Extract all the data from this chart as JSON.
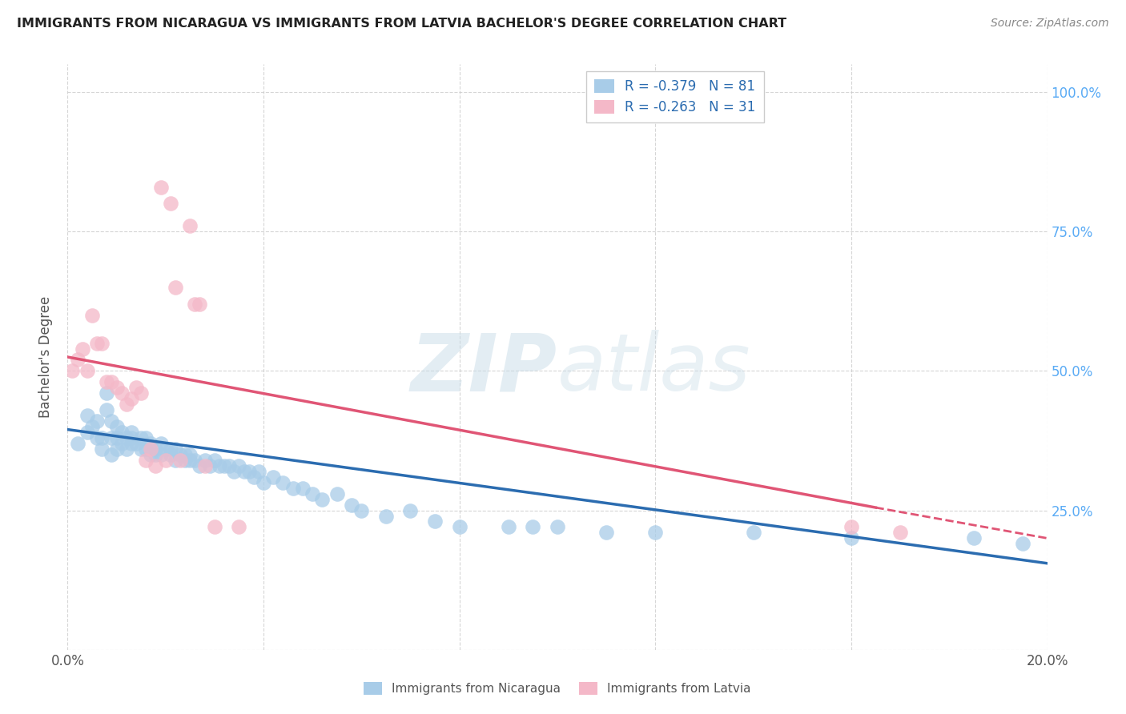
{
  "title": "IMMIGRANTS FROM NICARAGUA VS IMMIGRANTS FROM LATVIA BACHELOR'S DEGREE CORRELATION CHART",
  "source": "Source: ZipAtlas.com",
  "ylabel": "Bachelor's Degree",
  "watermark_zip": "ZIP",
  "watermark_atlas": "atlas",
  "legend_label1": "Immigrants from Nicaragua",
  "legend_label2": "Immigrants from Latvia",
  "legend_R1": "R = -0.379",
  "legend_N1": "N = 81",
  "legend_R2": "R = -0.263",
  "legend_N2": "N = 31",
  "blue_color": "#a8cce8",
  "pink_color": "#f4b8c8",
  "blue_line_color": "#2b6cb0",
  "pink_line_color": "#e05575",
  "background_color": "#ffffff",
  "grid_color": "#cccccc",
  "title_color": "#222222",
  "right_axis_color": "#5aabf5",
  "blue_scatter_x": [
    0.002,
    0.004,
    0.004,
    0.005,
    0.006,
    0.006,
    0.007,
    0.007,
    0.008,
    0.008,
    0.009,
    0.009,
    0.009,
    0.01,
    0.01,
    0.01,
    0.011,
    0.011,
    0.012,
    0.012,
    0.013,
    0.013,
    0.013,
    0.014,
    0.015,
    0.015,
    0.016,
    0.016,
    0.017,
    0.017,
    0.018,
    0.018,
    0.019,
    0.019,
    0.02,
    0.021,
    0.021,
    0.022,
    0.022,
    0.023,
    0.024,
    0.024,
    0.025,
    0.025,
    0.026,
    0.027,
    0.028,
    0.029,
    0.03,
    0.031,
    0.032,
    0.033,
    0.034,
    0.035,
    0.036,
    0.037,
    0.038,
    0.039,
    0.04,
    0.042,
    0.044,
    0.046,
    0.048,
    0.05,
    0.052,
    0.055,
    0.058,
    0.06,
    0.065,
    0.07,
    0.075,
    0.08,
    0.09,
    0.095,
    0.1,
    0.11,
    0.12,
    0.14,
    0.16,
    0.185,
    0.195
  ],
  "blue_scatter_y": [
    0.37,
    0.42,
    0.39,
    0.4,
    0.38,
    0.41,
    0.36,
    0.38,
    0.43,
    0.46,
    0.38,
    0.41,
    0.35,
    0.36,
    0.38,
    0.4,
    0.37,
    0.39,
    0.38,
    0.36,
    0.37,
    0.38,
    0.39,
    0.37,
    0.36,
    0.38,
    0.36,
    0.38,
    0.35,
    0.37,
    0.36,
    0.35,
    0.37,
    0.35,
    0.36,
    0.35,
    0.36,
    0.34,
    0.36,
    0.35,
    0.35,
    0.34,
    0.35,
    0.34,
    0.34,
    0.33,
    0.34,
    0.33,
    0.34,
    0.33,
    0.33,
    0.33,
    0.32,
    0.33,
    0.32,
    0.32,
    0.31,
    0.32,
    0.3,
    0.31,
    0.3,
    0.29,
    0.29,
    0.28,
    0.27,
    0.28,
    0.26,
    0.25,
    0.24,
    0.25,
    0.23,
    0.22,
    0.22,
    0.22,
    0.22,
    0.21,
    0.21,
    0.21,
    0.2,
    0.2,
    0.19
  ],
  "pink_scatter_x": [
    0.001,
    0.002,
    0.003,
    0.004,
    0.005,
    0.006,
    0.007,
    0.008,
    0.009,
    0.01,
    0.011,
    0.012,
    0.013,
    0.014,
    0.015,
    0.016,
    0.017,
    0.018,
    0.019,
    0.02,
    0.021,
    0.022,
    0.023,
    0.025,
    0.026,
    0.027,
    0.028,
    0.03,
    0.035,
    0.16,
    0.17
  ],
  "pink_scatter_y": [
    0.5,
    0.52,
    0.54,
    0.5,
    0.6,
    0.55,
    0.55,
    0.48,
    0.48,
    0.47,
    0.46,
    0.44,
    0.45,
    0.47,
    0.46,
    0.34,
    0.36,
    0.33,
    0.83,
    0.34,
    0.8,
    0.65,
    0.34,
    0.76,
    0.62,
    0.62,
    0.33,
    0.22,
    0.22,
    0.22,
    0.21
  ],
  "xlim": [
    0.0,
    0.2
  ],
  "ylim": [
    0.0,
    1.05
  ],
  "blue_trend_x0": 0.0,
  "blue_trend_y0": 0.395,
  "blue_trend_x1": 0.2,
  "blue_trend_y1": 0.155,
  "pink_trend_solid_x0": 0.0,
  "pink_trend_solid_y0": 0.525,
  "pink_trend_solid_x1": 0.165,
  "pink_trend_solid_y1": 0.255,
  "pink_trend_dash_x0": 0.165,
  "pink_trend_dash_y0": 0.255,
  "pink_trend_dash_x1": 0.2,
  "pink_trend_dash_y1": 0.2,
  "xtick_positions": [
    0.0,
    0.04,
    0.08,
    0.12,
    0.16,
    0.2
  ],
  "xtick_labels": [
    "0.0%",
    "",
    "",
    "",
    "",
    "20.0%"
  ],
  "ytick_positions": [
    0.0,
    0.25,
    0.5,
    0.75,
    1.0
  ],
  "right_ytick_labels": [
    "100.0%",
    "75.0%",
    "50.0%",
    "25.0%"
  ],
  "right_ytick_positions": [
    1.0,
    0.75,
    0.5,
    0.25
  ]
}
